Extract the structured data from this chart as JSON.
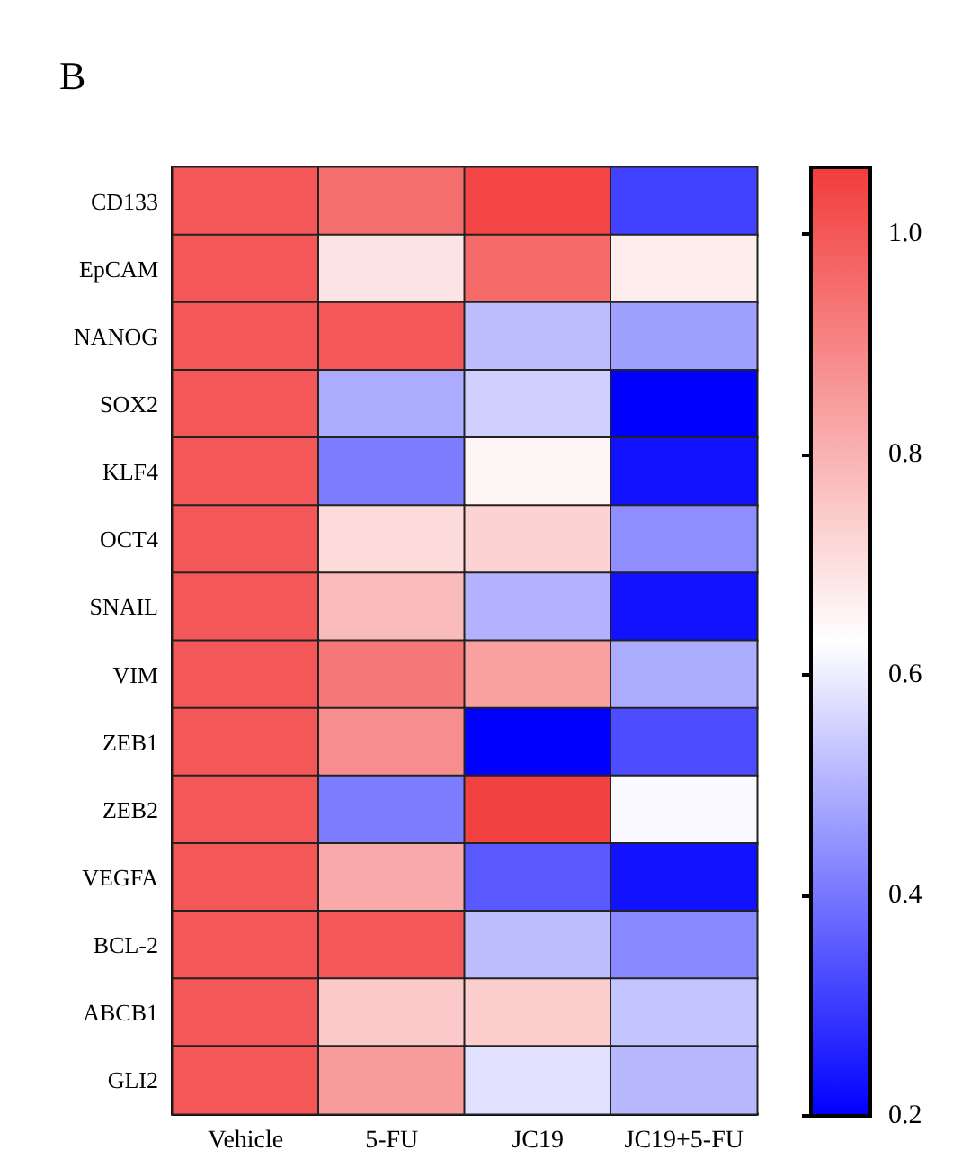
{
  "chart_data": {
    "type": "heatmap",
    "title": "B",
    "categories": [
      "Vehicle",
      "5-FU",
      "JC19",
      "JC19+5-FU"
    ],
    "y_categories": [
      "CD133",
      "EpCAM",
      "NANOG",
      "SOX2",
      "KLF4",
      "OCT4",
      "SNAIL",
      "VIM",
      "ZEB1",
      "ZEB2",
      "VEGFA",
      "BCL-2",
      "ABCB1",
      "GLI2"
    ],
    "cells": [
      [
        1.0,
        0.95,
        1.04,
        0.31
      ],
      [
        1.0,
        0.69,
        0.96,
        0.67
      ],
      [
        1.0,
        1.0,
        0.52,
        0.47
      ],
      [
        1.0,
        0.49,
        0.55,
        0.2
      ],
      [
        1.0,
        0.41,
        0.65,
        0.23
      ],
      [
        1.0,
        0.71,
        0.73,
        0.44
      ],
      [
        1.0,
        0.78,
        0.5,
        0.23
      ],
      [
        1.0,
        0.93,
        0.84,
        0.49
      ],
      [
        1.0,
        0.88,
        0.2,
        0.33
      ],
      [
        1.0,
        0.41,
        1.05,
        0.62
      ],
      [
        1.0,
        0.82,
        0.35,
        0.23
      ],
      [
        1.0,
        1.0,
        0.52,
        0.43
      ],
      [
        1.0,
        0.75,
        0.74,
        0.53
      ],
      [
        1.0,
        0.85,
        0.58,
        0.51
      ]
    ],
    "clim": [
      0.2,
      1.06
    ],
    "cticks": [
      0.2,
      0.4,
      0.6,
      0.8,
      {
        "value": 1.0,
        "label": "1.0"
      }
    ]
  }
}
